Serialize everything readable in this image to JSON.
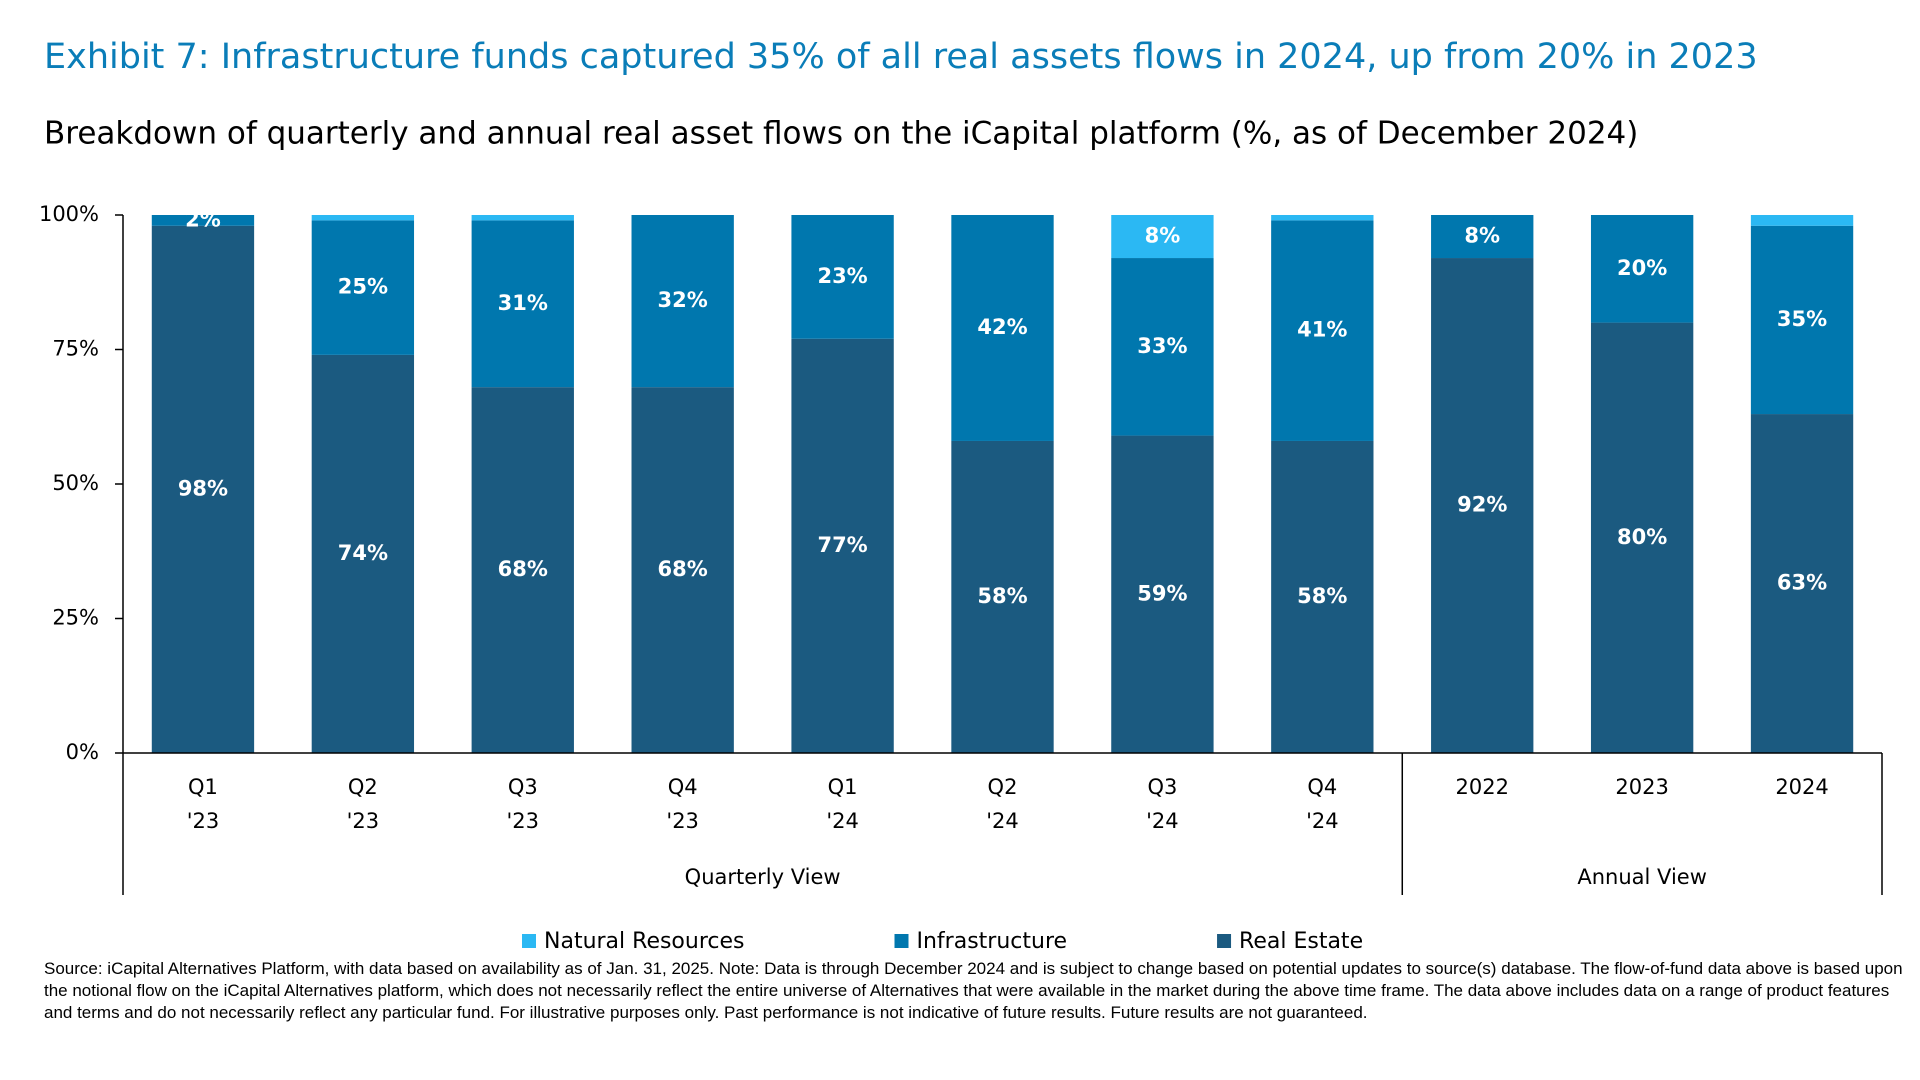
{
  "chart_data": {
    "type": "stacked-bar",
    "title": "Exhibit 7: Infrastructure funds captured 35% of all real assets flows in 2024, up from 20% in 2023",
    "subtitle": "Breakdown of quarterly and annual real asset flows on the iCapital platform (%, as of December 2024)",
    "groups": [
      {
        "name": "Quarterly View",
        "categories": [
          [
            "Q1",
            "'23"
          ],
          [
            "Q2",
            "'23"
          ],
          [
            "Q3",
            "'23"
          ],
          [
            "Q4",
            "'23"
          ],
          [
            "Q1",
            "'24"
          ],
          [
            "Q2",
            "'24"
          ],
          [
            "Q3",
            "'24"
          ],
          [
            "Q4",
            "'24"
          ]
        ]
      },
      {
        "name": "Annual View",
        "categories": [
          [
            "2022"
          ],
          [
            "2023"
          ],
          [
            "2024"
          ]
        ]
      }
    ],
    "series": [
      {
        "name": "Real Estate",
        "color": "#1b5a80",
        "values": [
          98,
          74,
          68,
          68,
          77,
          58,
          59,
          58,
          92,
          80,
          63
        ],
        "value_labels": [
          "98%",
          "74%",
          "68%",
          "68%",
          "77%",
          "58%",
          "59%",
          "58%",
          "92%",
          "80%",
          "63%"
        ]
      },
      {
        "name": "Infrastructure",
        "color": "#0077ae",
        "values": [
          2,
          25,
          31,
          32,
          23,
          42,
          33,
          41,
          8,
          20,
          35
        ],
        "value_labels": [
          "2%",
          "25%",
          "31%",
          "32%",
          "23%",
          "42%",
          "33%",
          "41%",
          "8%",
          "20%",
          "35%"
        ]
      },
      {
        "name": "Natural Resources",
        "color": "#2bb8f3",
        "values": [
          0,
          1,
          1,
          0,
          0,
          0,
          8,
          1,
          0,
          0,
          2
        ],
        "value_labels": [
          null,
          null,
          null,
          null,
          null,
          null,
          "8%",
          null,
          null,
          null,
          null
        ]
      }
    ],
    "ylim": [
      0,
      100
    ],
    "yticks": [
      {
        "value": 0,
        "label": "0%"
      },
      {
        "value": 25,
        "label": "25%"
      },
      {
        "value": 50,
        "label": "50%"
      },
      {
        "value": 75,
        "label": "75%"
      },
      {
        "value": 100,
        "label": "100%"
      }
    ],
    "legend_order": [
      "Natural Resources",
      "Infrastructure",
      "Real Estate"
    ],
    "source": "Source: iCapital Alternatives Platform, with data based on availability as of Jan. 31, 2025. Note: Data is through December 2024 and is subject to change based on potential updates to source(s) database. The flow-of-fund data above is based upon the notional flow on the iCapital Alternatives platform, which does not necessarily reflect the entire universe of Alternatives that were available in the market during the above time frame. The data above includes data on a range of product features and terms and do not necessarily reflect any particular fund. For illustrative purposes only. Past performance is not indicative of future results. Future results are not guaranteed."
  }
}
